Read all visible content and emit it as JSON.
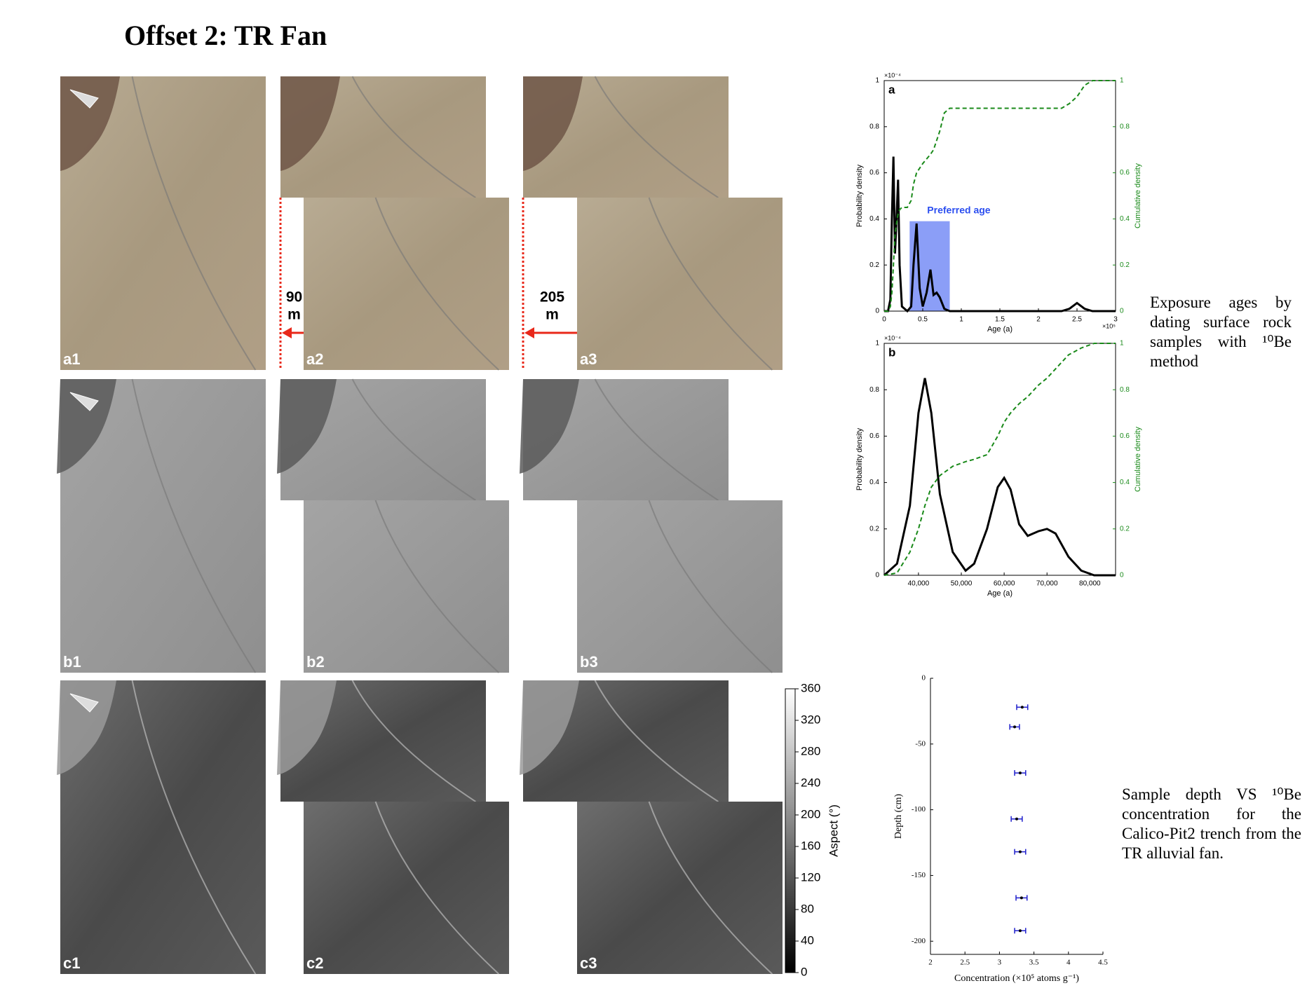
{
  "title": "Offset 2: TR Fan",
  "panels": {
    "labels": [
      [
        "a1",
        "a2",
        "a3"
      ],
      [
        "b1",
        "b2",
        "b3"
      ],
      [
        "c1",
        "c2",
        "c3"
      ]
    ],
    "offsets": [
      {
        "distance": "90",
        "unit": "m"
      },
      {
        "distance": "205",
        "unit": "m"
      }
    ]
  },
  "colorbar": {
    "label": "Aspect (°)",
    "range": [
      0,
      360
    ],
    "ticks": [
      0,
      40,
      80,
      120,
      160,
      200,
      240,
      280,
      320,
      360
    ]
  },
  "captions": [
    "Exposure ages by dating surface rock samples with ¹⁰Be method",
    "Sample depth VS ¹⁰Be concentration for the Calico-Pit2 trench from the TR alluvial fan."
  ],
  "chart_data": [
    {
      "type": "line",
      "panel": "a",
      "x_label": "Age (a)",
      "y_label": "Probability density",
      "y2_label": "Cumulative density",
      "x_multiplier": "×10⁵",
      "y_multiplier": "×10⁻⁴",
      "x": [
        0,
        0.05,
        0.08,
        0.1,
        0.12,
        0.14,
        0.16,
        0.18,
        0.2,
        0.23,
        0.3,
        0.35,
        0.38,
        0.42,
        0.46,
        0.5,
        0.55,
        0.6,
        0.64,
        0.68,
        0.72,
        0.78,
        0.85,
        1.5,
        2.3,
        2.4,
        2.5,
        2.6,
        2.7,
        3
      ],
      "series": [
        {
          "name": "Probability density",
          "color": "#000000",
          "values": [
            0,
            0,
            0.05,
            0.4,
            0.67,
            0.25,
            0.4,
            0.57,
            0.2,
            0.02,
            0,
            0.02,
            0.2,
            0.38,
            0.1,
            0.02,
            0.08,
            0.18,
            0.07,
            0.08,
            0.06,
            0.01,
            0,
            0,
            0,
            0.01,
            0.035,
            0.01,
            0,
            0
          ]
        },
        {
          "name": "Cumulative density",
          "color": "#1a8a1a",
          "axis": "y2",
          "dashed": true,
          "values": [
            0,
            0,
            0.02,
            0.08,
            0.2,
            0.33,
            0.38,
            0.42,
            0.44,
            0.45,
            0.45,
            0.48,
            0.55,
            0.6,
            0.62,
            0.64,
            0.66,
            0.68,
            0.7,
            0.74,
            0.78,
            0.86,
            0.88,
            0.88,
            0.88,
            0.9,
            0.93,
            0.98,
            1,
            1
          ]
        }
      ],
      "shaded_region": {
        "label": "Preferred age",
        "xlim": [
          0.33,
          0.85
        ],
        "top": 0.39,
        "color": "#2b4ef0"
      },
      "xlim": [
        0,
        3
      ],
      "xticks": [
        0,
        0.5,
        1,
        1.5,
        2,
        2.5,
        3
      ],
      "ylim": [
        0,
        1
      ],
      "yticks": [
        0,
        0.2,
        0.4,
        0.6,
        0.8,
        1
      ],
      "y2lim": [
        0,
        1
      ],
      "y2ticks": [
        0,
        0.2,
        0.4,
        0.6,
        0.8,
        1
      ]
    },
    {
      "type": "line",
      "panel": "b",
      "x_label": "Age (a)",
      "y_label": "Probability density",
      "y2_label": "Cumulative density",
      "y_multiplier": "×10⁻⁴",
      "x": [
        32000,
        35000,
        38000,
        40000,
        41500,
        43000,
        45000,
        48000,
        51000,
        53000,
        56000,
        58500,
        60000,
        61500,
        63500,
        65500,
        68000,
        70000,
        72000,
        75000,
        78000,
        81000,
        86000
      ],
      "series": [
        {
          "name": "Probability density",
          "color": "#000000",
          "values": [
            0,
            0.05,
            0.3,
            0.7,
            0.85,
            0.7,
            0.35,
            0.1,
            0.02,
            0.05,
            0.2,
            0.38,
            0.42,
            0.37,
            0.22,
            0.17,
            0.19,
            0.2,
            0.18,
            0.08,
            0.02,
            0,
            0
          ]
        },
        {
          "name": "Cumulative density",
          "color": "#1a8a1a",
          "axis": "y2",
          "dashed": true,
          "values": [
            0,
            0.01,
            0.1,
            0.2,
            0.3,
            0.38,
            0.43,
            0.47,
            0.49,
            0.5,
            0.52,
            0.6,
            0.66,
            0.7,
            0.74,
            0.77,
            0.82,
            0.85,
            0.89,
            0.95,
            0.98,
            1,
            1
          ]
        }
      ],
      "xlim": [
        32000,
        86000
      ],
      "xticks": [
        {
          "value": 40000,
          "label": "40,000"
        },
        {
          "value": 50000,
          "label": "50,000"
        },
        {
          "value": 60000,
          "label": "60,000"
        },
        {
          "value": 70000,
          "label": "70,000"
        },
        {
          "value": 80000,
          "label": "80,000"
        }
      ],
      "ylim": [
        0,
        1
      ],
      "yticks": [
        0,
        0.2,
        0.4,
        0.6,
        0.8,
        1
      ],
      "y2lim": [
        0,
        1
      ],
      "y2ticks": [
        0,
        0.2,
        0.4,
        0.6,
        0.8,
        1
      ]
    },
    {
      "type": "errorbar",
      "x_label": "Concentration (×10⁵ atoms g⁻¹)",
      "y_label": "Depth (cm)",
      "x": [
        3.33,
        3.22,
        3.3,
        3.25,
        3.3,
        3.32,
        3.3
      ],
      "values": [
        -22,
        -37,
        -72,
        -107,
        -132,
        -167,
        -192
      ],
      "xerr": [
        0.08,
        0.07,
        0.08,
        0.08,
        0.08,
        0.08,
        0.08
      ],
      "color": "#1f1fcc",
      "xlim": [
        2,
        4.5
      ],
      "xticks": [
        2,
        2.5,
        3,
        3.5,
        4,
        4.5
      ],
      "ylim": [
        -210,
        0
      ],
      "yticks": [
        0,
        -50,
        -100,
        -150,
        -200
      ]
    }
  ]
}
